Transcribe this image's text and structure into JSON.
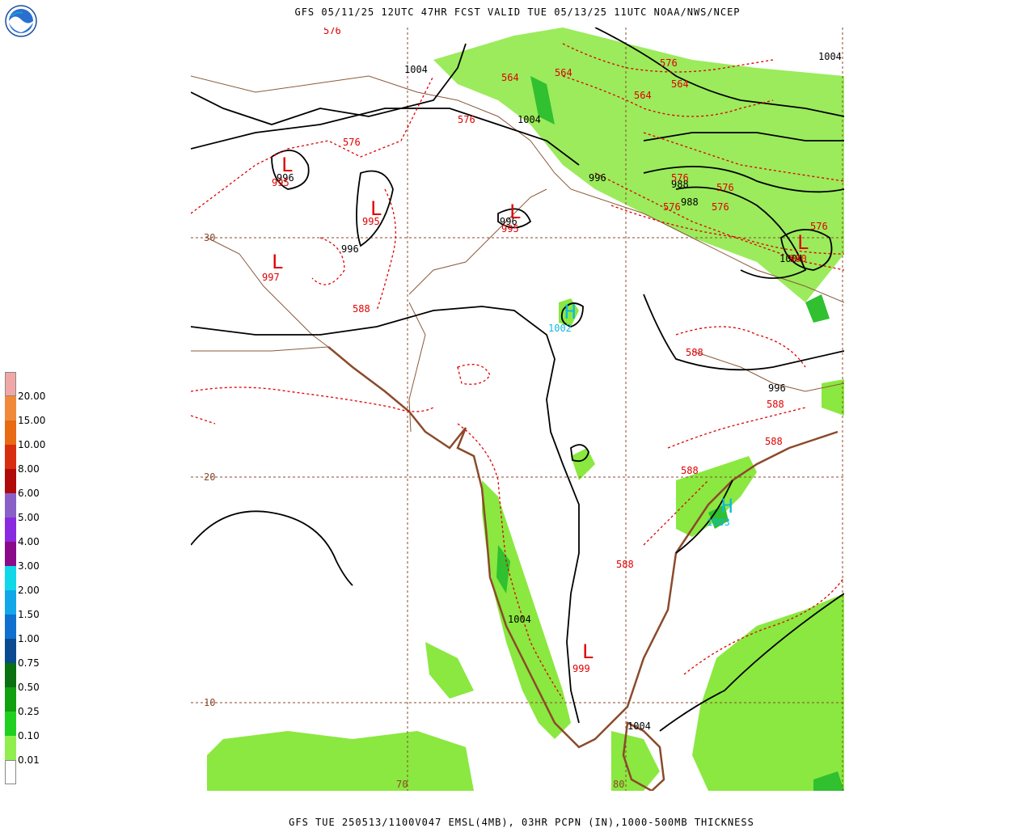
{
  "header": {
    "title": "GFS 05/11/25 12UTC 47HR FCST VALID TUE 05/13/25 11UTC NOAA/NWS/NCEP"
  },
  "footer": {
    "text": "GFS TUE 250513/1100V047 EMSL(4MB), 03HR PCPN (IN),1000-500MB THICKNESS"
  },
  "logo": {
    "text": "NOAA"
  },
  "legend": {
    "items": [
      {
        "label": "20.00",
        "color": "#f2a7a7"
      },
      {
        "label": "15.00",
        "color": "#f08a3a"
      },
      {
        "label": "10.00",
        "color": "#e86a12"
      },
      {
        "label": "8.00",
        "color": "#d82e10"
      },
      {
        "label": "6.00",
        "color": "#b00a0a"
      },
      {
        "label": "5.00",
        "color": "#8a60c8"
      },
      {
        "label": "4.00",
        "color": "#8a2ae0"
      },
      {
        "label": "3.00",
        "color": "#8a0a8a"
      },
      {
        "label": "2.00",
        "color": "#10d8e8"
      },
      {
        "label": "1.50",
        "color": "#10a8e8"
      },
      {
        "label": "1.00",
        "color": "#1070d0"
      },
      {
        "label": "0.75",
        "color": "#0a4a90"
      },
      {
        "label": "0.50",
        "color": "#0a7010"
      },
      {
        "label": "0.25",
        "color": "#10a010"
      },
      {
        "label": "0.10",
        "color": "#20d020"
      },
      {
        "label": "0.01",
        "color": "#20e820"
      },
      {
        "label": "",
        "color": "#90ee50"
      }
    ]
  },
  "grid": {
    "lat_labels": [
      "30",
      "20",
      "10"
    ],
    "lon_labels": [
      "70",
      "80"
    ]
  },
  "isobars": [
    "1004",
    "1004",
    "996",
    "996",
    "996",
    "988",
    "988",
    "996",
    "996",
    "1004",
    "1004",
    "1004",
    "1004"
  ],
  "thickness_labels": [
    "576",
    "576",
    "564",
    "564",
    "576",
    "564",
    "564",
    "576",
    "576",
    "576",
    "576",
    "576",
    "576",
    "588",
    "588",
    "588",
    "588",
    "588",
    "588"
  ],
  "pressure_centers": [
    {
      "type": "L",
      "value": "995"
    },
    {
      "type": "L",
      "value": "995"
    },
    {
      "type": "L",
      "value": "995"
    },
    {
      "type": "L",
      "value": "997"
    },
    {
      "type": "L",
      "value": "999"
    },
    {
      "type": "L",
      "value": "980"
    },
    {
      "type": "H",
      "value": "1002"
    },
    {
      "type": "H",
      "value": "1003"
    }
  ]
}
